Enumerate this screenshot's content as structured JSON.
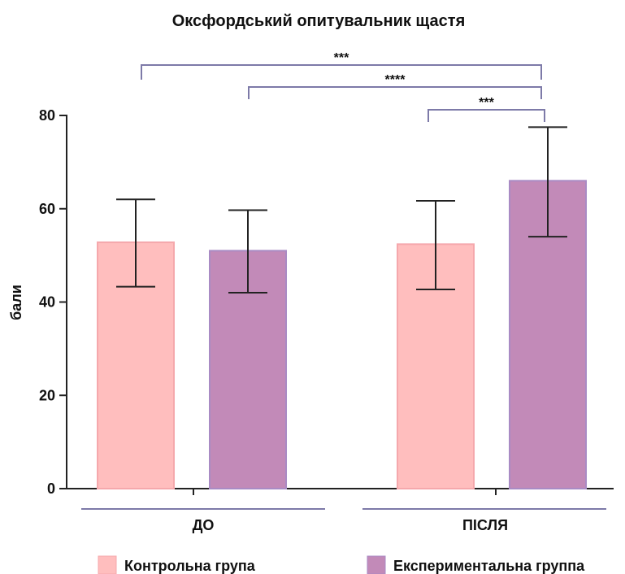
{
  "chart_data": {
    "type": "bar",
    "title": "Оксфордський опитувальник щастя",
    "ylabel": "бали",
    "xlabel": "",
    "ylim": [
      0,
      80
    ],
    "yticks": [
      0,
      20,
      40,
      60,
      80
    ],
    "grid": false,
    "legend_position": "bottom",
    "groups": [
      "ДО",
      "ПІСЛЯ"
    ],
    "series": [
      {
        "name": "Контрольна група",
        "color": "#FFBEBE",
        "edge": "#F5A8AC",
        "values": [
          52.8,
          52.4
        ],
        "err_low": [
          43.3,
          42.7
        ],
        "err_high": [
          62.0,
          61.7
        ]
      },
      {
        "name": "Експериментальна группа",
        "color": "#C28AB8",
        "edge": "#A98BC4",
        "values": [
          51.0,
          66.0
        ],
        "err_low": [
          42.0,
          54.0
        ],
        "err_high": [
          59.7,
          77.5
        ]
      }
    ],
    "significance": [
      {
        "from": "ДО / Контрольна група",
        "to": "ПІСЛЯ / Експериментальна группа",
        "label": "***",
        "level": 2
      },
      {
        "from": "ДО / Експериментальна группа",
        "to": "ПІСЛЯ / Експериментальна группа",
        "label": "****",
        "level": 1
      },
      {
        "from": "ПІСЛЯ / Контрольна група",
        "to": "ПІСЛЯ / Експериментальна группа",
        "label": "***",
        "level": 0
      }
    ]
  }
}
